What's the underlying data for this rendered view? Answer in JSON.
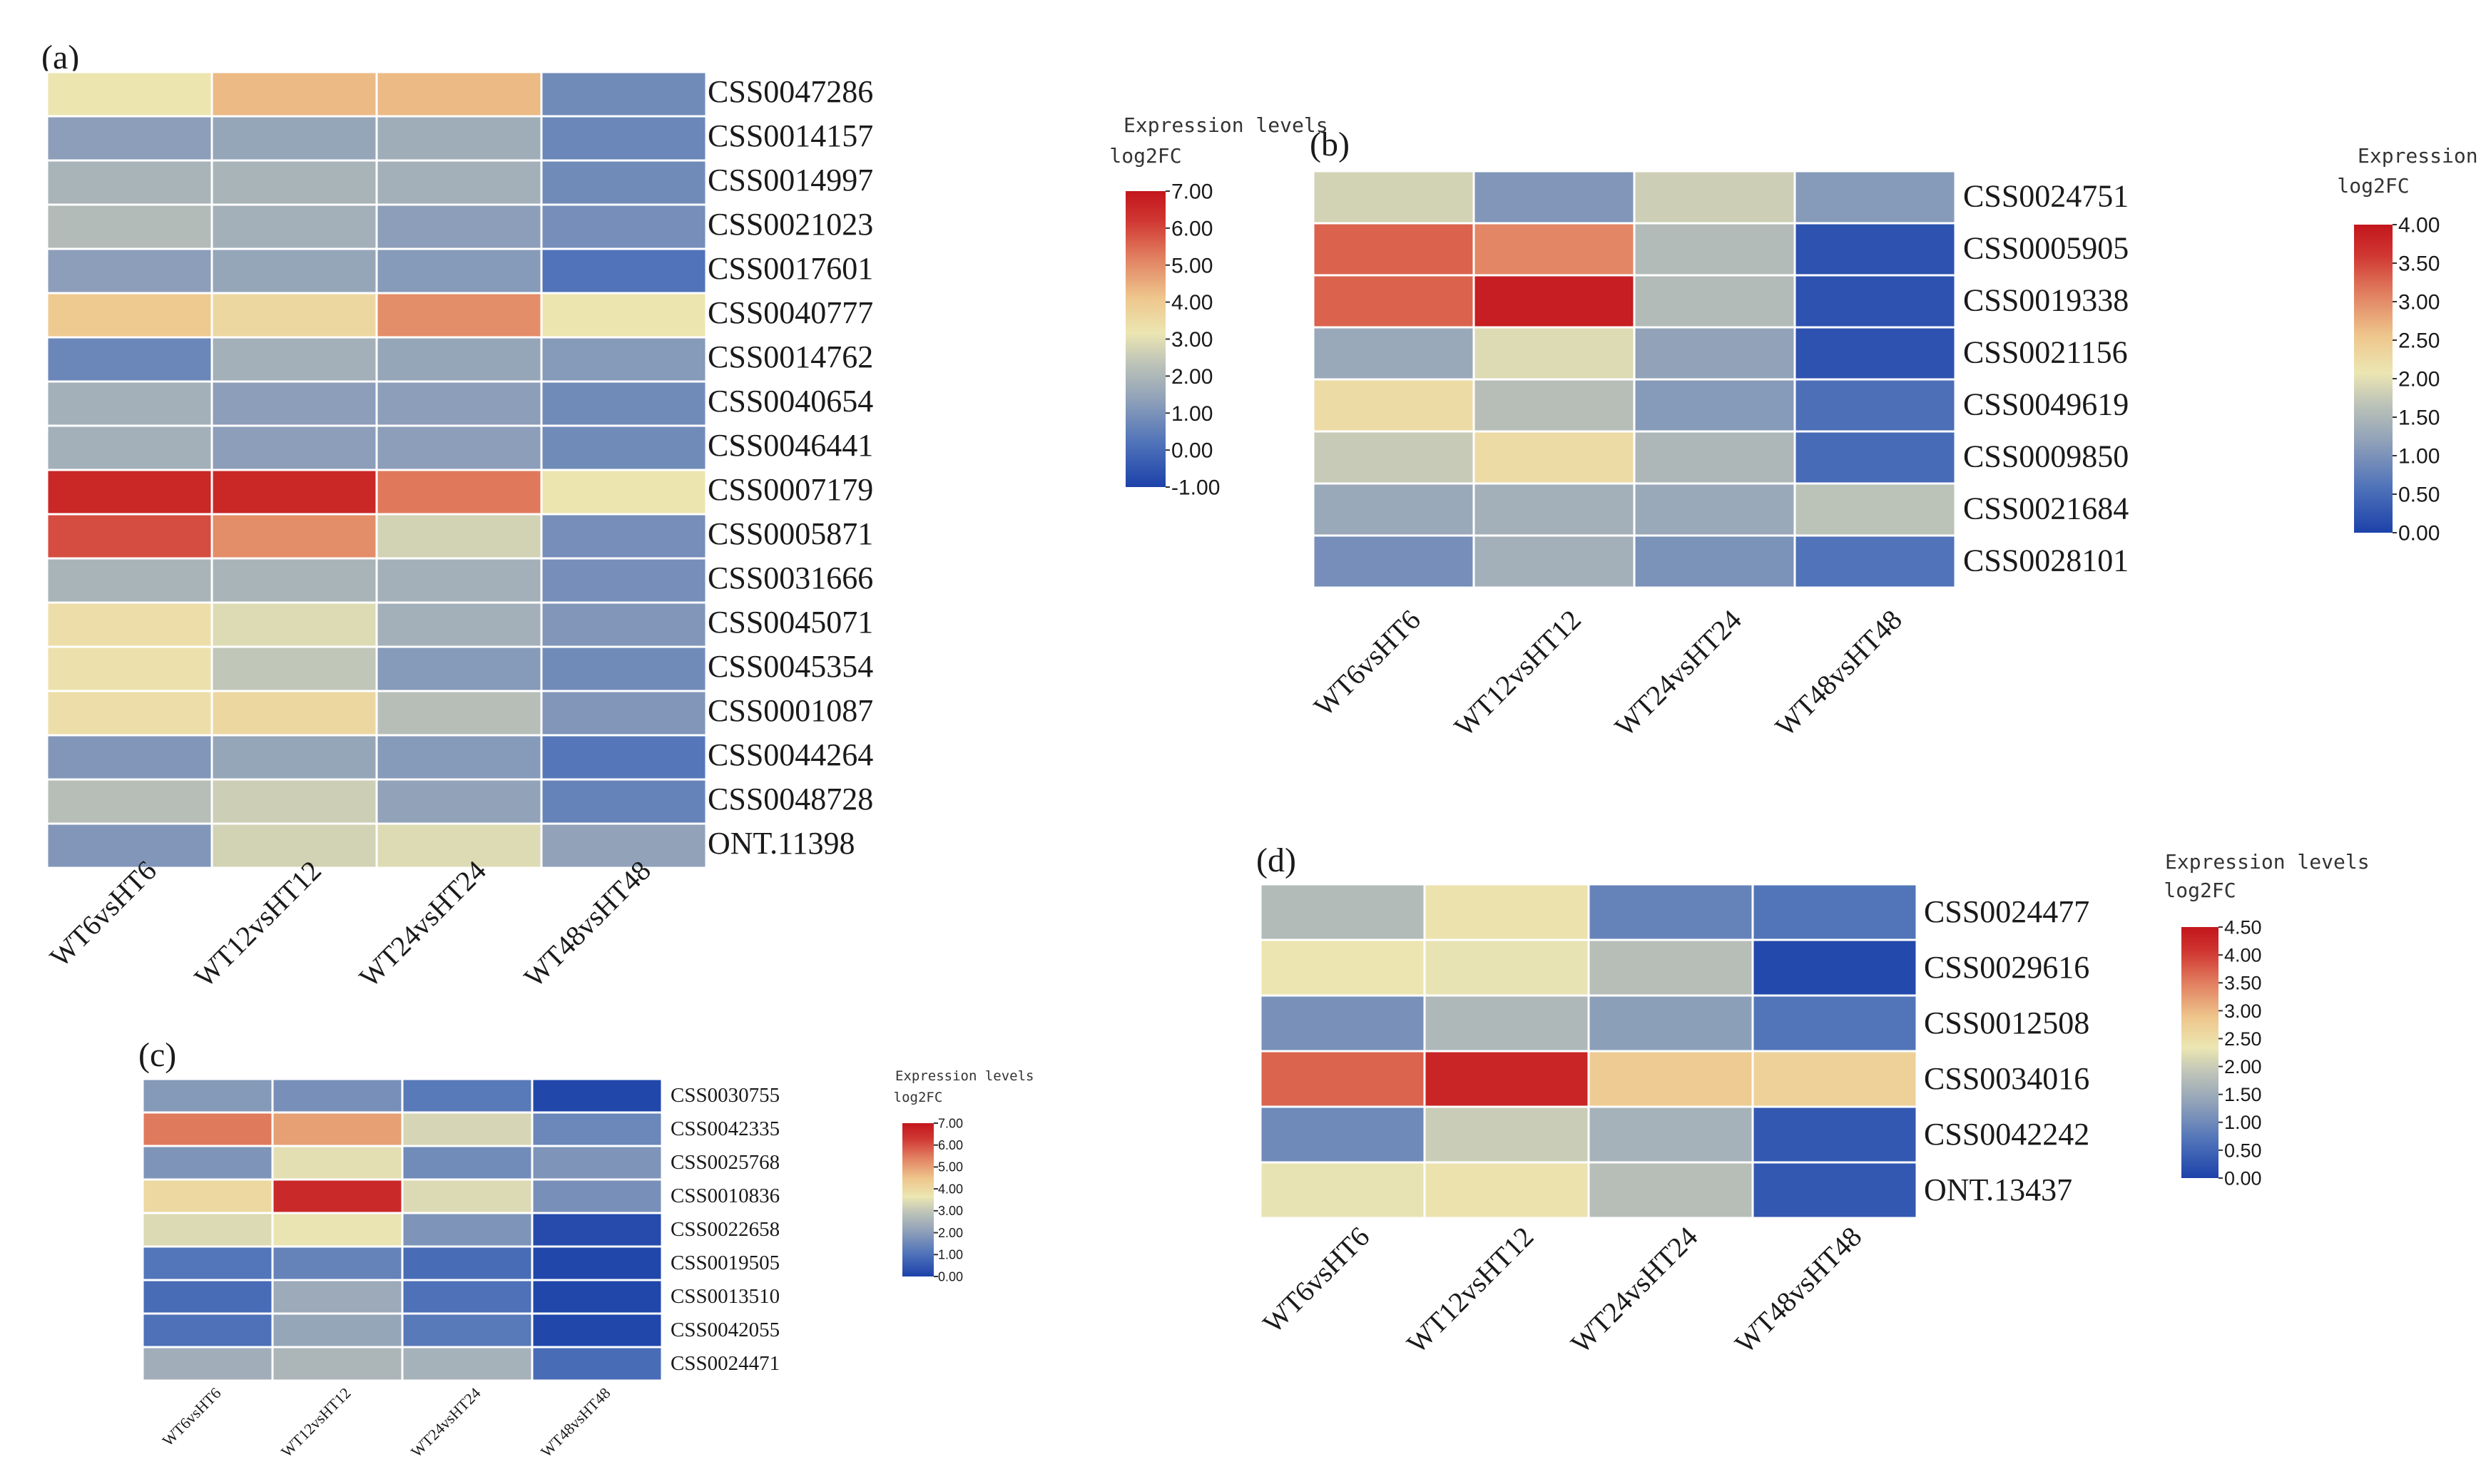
{
  "chart_data": [
    {
      "type": "heatmap",
      "panel": "(a)",
      "columns": [
        "WT6vsHT6",
        "WT12vsHT12",
        "WT24vsHT24",
        "WT48vsHT48"
      ],
      "rows": [
        "CSS0047286",
        "CSS0014157",
        "CSS0014997",
        "CSS0021023",
        "CSS0017601",
        "CSS0040777",
        "CSS0014762",
        "CSS0040654",
        "CSS0046441",
        "CSS0007179",
        "CSS0005871",
        "CSS0031666",
        "CSS0045071",
        "CSS0045354",
        "CSS0001087",
        "CSS0044264",
        "CSS0048728",
        "ONT.11398"
      ],
      "values": [
        [
          3.2,
          4.3,
          4.3,
          0.8
        ],
        [
          1.3,
          1.5,
          1.7,
          0.7
        ],
        [
          1.9,
          1.9,
          1.8,
          0.8
        ],
        [
          2.1,
          1.8,
          1.3,
          0.9
        ],
        [
          1.3,
          1.5,
          1.2,
          0.2
        ],
        [
          4.0,
          3.6,
          5.0,
          3.2
        ],
        [
          0.7,
          1.8,
          1.5,
          1.2
        ],
        [
          1.8,
          1.3,
          1.3,
          0.8
        ],
        [
          1.8,
          1.3,
          1.3,
          0.8
        ],
        [
          6.6,
          6.6,
          5.3,
          3.2
        ],
        [
          5.9,
          5.0,
          2.7,
          0.9
        ],
        [
          1.9,
          1.9,
          1.8,
          0.9
        ],
        [
          3.4,
          2.9,
          1.8,
          1.1
        ],
        [
          3.3,
          2.4,
          1.2,
          0.8
        ],
        [
          3.4,
          3.6,
          2.2,
          1.1
        ],
        [
          1.1,
          1.5,
          1.2,
          0.3
        ],
        [
          2.2,
          2.6,
          1.4,
          0.6
        ],
        [
          1.1,
          2.7,
          2.9,
          1.4
        ]
      ],
      "colorbar": {
        "title": "Expression levels",
        "subtitle": "log2FC",
        "ticks": [
          "7.00",
          "6.00",
          "5.00",
          "4.00",
          "3.00",
          "2.00",
          "1.00",
          "0.00",
          "-1.00"
        ],
        "min": -1,
        "max": 7
      }
    },
    {
      "type": "heatmap",
      "panel": "(b)",
      "columns": [
        "WT6vsHT6",
        "WT12vsHT12",
        "WT24vsHT24",
        "WT48vsHT48"
      ],
      "rows": [
        "CSS0024751",
        "CSS0005905",
        "CSS0019338",
        "CSS0021156",
        "CSS0049619",
        "CSS0009850",
        "CSS0021684",
        "CSS0028101"
      ],
      "values": [
        [
          1.85,
          1.05,
          1.8,
          1.1
        ],
        [
          3.3,
          3.05,
          1.55,
          0.2
        ],
        [
          3.3,
          3.9,
          1.55,
          0.2
        ],
        [
          1.3,
          1.95,
          1.2,
          0.2
        ],
        [
          2.25,
          1.6,
          1.1,
          0.55
        ],
        [
          1.75,
          2.25,
          1.5,
          0.5
        ],
        [
          1.3,
          1.4,
          1.3,
          1.65
        ],
        [
          0.95,
          1.4,
          1.0,
          0.6
        ]
      ],
      "colorbar": {
        "title": "Expression levels",
        "subtitle": "log2FC",
        "ticks": [
          "4.00",
          "3.50",
          "3.00",
          "2.50",
          "2.00",
          "1.50",
          "1.00",
          "0.50",
          "0.00"
        ],
        "min": 0,
        "max": 4
      }
    },
    {
      "type": "heatmap",
      "panel": "(c)",
      "columns": [
        "WT6vsHT6",
        "WT12vsHT12",
        "WT24vsHT24",
        "WT48vsHT48"
      ],
      "rows": [
        "CSS0030755",
        "CSS0042335",
        "CSS0025768",
        "CSS0010836",
        "CSS0022658",
        "CSS0019505",
        "CSS0013510",
        "CSS0042055",
        "CSS0024471"
      ],
      "values": [
        [
          1.9,
          1.7,
          1.2,
          0.1
        ],
        [
          5.5,
          5.0,
          3.3,
          1.5
        ],
        [
          1.8,
          3.5,
          1.6,
          1.8
        ],
        [
          4.0,
          6.6,
          3.4,
          1.7
        ],
        [
          3.4,
          3.6,
          1.8,
          0.2
        ],
        [
          1.1,
          1.4,
          0.9,
          0.1
        ],
        [
          0.9,
          2.3,
          1.0,
          0.1
        ],
        [
          1.0,
          2.2,
          1.2,
          0.1
        ],
        [
          2.4,
          2.6,
          2.5,
          0.9
        ]
      ],
      "colorbar": {
        "title": "Expression levels",
        "subtitle": "log2FC",
        "ticks": [
          "7.00",
          "6.00",
          "5.00",
          "4.00",
          "3.00",
          "2.00",
          "1.00",
          "0.00"
        ],
        "min": 0,
        "max": 7
      }
    },
    {
      "type": "heatmap",
      "panel": "(d)",
      "columns": [
        "WT6vsHT6",
        "WT12vsHT12",
        "WT24vsHT24",
        "WT48vsHT48"
      ],
      "rows": [
        "CSS0024477",
        "CSS0029616",
        "CSS0012508",
        "CSS0034016",
        "CSS0042242",
        "ONT.13437"
      ],
      "values": [
        [
          1.75,
          2.4,
          0.9,
          0.7
        ],
        [
          2.35,
          2.3,
          1.8,
          0.1
        ],
        [
          1.1,
          1.7,
          1.3,
          0.7
        ],
        [
          3.7,
          4.3,
          2.8,
          2.7
        ],
        [
          1.0,
          2.0,
          1.6,
          0.3
        ],
        [
          2.3,
          2.4,
          1.8,
          0.3
        ]
      ],
      "colorbar": {
        "title": "Expression levels",
        "subtitle": "log2FC",
        "ticks": [
          "4.50",
          "4.00",
          "3.50",
          "3.00",
          "2.50",
          "2.00",
          "1.50",
          "1.00",
          "0.50",
          "0.00"
        ],
        "min": 0,
        "max": 4.5
      }
    }
  ]
}
